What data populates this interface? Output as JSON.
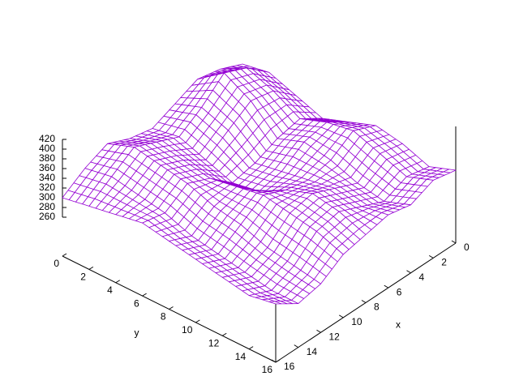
{
  "chart_data": {
    "type": "surface",
    "x_label": "x",
    "y_label": "y",
    "x": [
      0,
      2,
      4,
      6,
      8,
      10,
      12,
      14,
      16
    ],
    "y": [
      0,
      2,
      4,
      6,
      8,
      10,
      12,
      14,
      16
    ],
    "z": [
      [
        330,
        350,
        360,
        340,
        320,
        330,
        350,
        330,
        300
      ],
      [
        340,
        380,
        400,
        360,
        330,
        350,
        370,
        340,
        310
      ],
      [
        320,
        360,
        370,
        340,
        310,
        340,
        360,
        330,
        320
      ],
      [
        300,
        330,
        320,
        300,
        290,
        330,
        350,
        320,
        330
      ],
      [
        320,
        350,
        340,
        310,
        300,
        340,
        330,
        300,
        320
      ],
      [
        340,
        360,
        330,
        320,
        330,
        350,
        320,
        290,
        310
      ],
      [
        330,
        340,
        310,
        330,
        350,
        340,
        300,
        280,
        300
      ],
      [
        310,
        320,
        300,
        320,
        340,
        330,
        290,
        270,
        290
      ],
      [
        330,
        340,
        320,
        330,
        320,
        310,
        280,
        270,
        300
      ]
    ],
    "xlim": [
      0,
      16
    ],
    "ylim": [
      0,
      16
    ],
    "zlim": [
      260,
      420
    ],
    "xticks": [
      0,
      2,
      4,
      6,
      8,
      10,
      12,
      14,
      16
    ],
    "yticks": [
      0,
      2,
      4,
      6,
      8,
      10,
      12,
      14,
      16
    ],
    "zticks": [
      260,
      280,
      300,
      320,
      340,
      360,
      380,
      400,
      420
    ],
    "ticslevel": 0.5,
    "top_color": "#9400d3",
    "bottom_color": "#009e73"
  }
}
